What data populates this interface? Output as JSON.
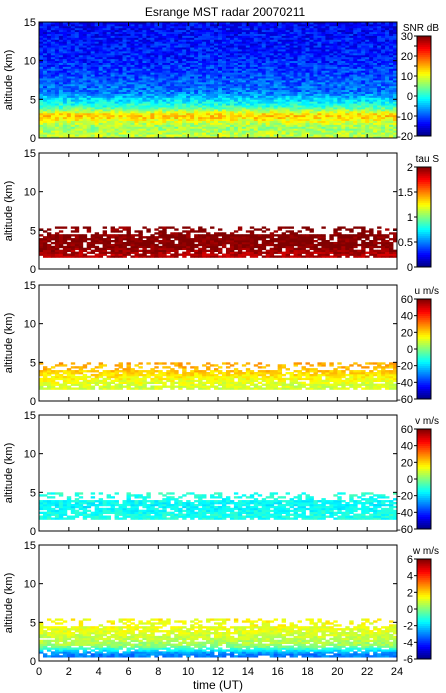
{
  "title": "Esrange MST radar 20070211",
  "chart_data": [
    {
      "type": "heatmap",
      "quantity": "SNR",
      "colorbar_label": "SNR dB",
      "clim": [
        -20,
        30
      ],
      "colorbar_ticks": [
        -20,
        -15,
        -10,
        -5,
        0,
        5,
        10,
        15,
        20,
        25,
        30
      ],
      "colormap": "jet",
      "background": "filled",
      "ylabel": "altitude (km)",
      "ylim": [
        0,
        15
      ],
      "yticks": [
        0,
        5,
        10,
        15
      ],
      "xlim": [
        0,
        24
      ],
      "layer_profile": [
        {
          "altitude_km": 0.5,
          "value": 8
        },
        {
          "altitude_km": 1.5,
          "value": 6
        },
        {
          "altitude_km": 2.5,
          "value": 12
        },
        {
          "altitude_km": 3.0,
          "value": 14
        },
        {
          "altitude_km": 4.0,
          "value": 2
        },
        {
          "altitude_km": 6.0,
          "value": -8
        },
        {
          "altitude_km": 10.0,
          "value": -12
        },
        {
          "altitude_km": 15.0,
          "value": -14
        }
      ]
    },
    {
      "type": "heatmap",
      "quantity": "tau",
      "colorbar_label": "tau S",
      "clim": [
        0,
        2
      ],
      "colorbar_ticks": [
        0,
        0.5,
        1,
        1.5,
        2
      ],
      "colormap": "jet",
      "background": "sparse",
      "ylabel": "altitude (km)",
      "ylim": [
        0,
        15
      ],
      "yticks": [
        0,
        5,
        10,
        15
      ],
      "xlim": [
        0,
        24
      ],
      "layer_profile": [
        {
          "altitude_km": 2.0,
          "value": 1.9
        },
        {
          "altitude_km": 3.0,
          "value": 2.0
        },
        {
          "altitude_km": 4.0,
          "value": 2.0
        },
        {
          "altitude_km": 5.5,
          "value": 2.0
        }
      ]
    },
    {
      "type": "heatmap",
      "quantity": "u",
      "colorbar_label": "u m/s",
      "clim": [
        -60,
        60
      ],
      "colorbar_ticks": [
        -60,
        -40,
        -20,
        0,
        20,
        40,
        60
      ],
      "colormap": "jet",
      "background": "sparse",
      "ylabel": "altitude (km)",
      "ylim": [
        0,
        15
      ],
      "yticks": [
        0,
        5,
        10,
        15
      ],
      "xlim": [
        0,
        24
      ],
      "layer_profile": [
        {
          "altitude_km": 2.0,
          "value": 10
        },
        {
          "altitude_km": 3.0,
          "value": 15
        },
        {
          "altitude_km": 4.0,
          "value": 22
        },
        {
          "altitude_km": 5.0,
          "value": 25
        }
      ]
    },
    {
      "type": "heatmap",
      "quantity": "v",
      "colorbar_label": "v m/s",
      "clim": [
        -60,
        60
      ],
      "colorbar_ticks": [
        -60,
        -40,
        -20,
        0,
        20,
        40,
        60
      ],
      "colormap": "jet",
      "background": "sparse",
      "ylabel": "altitude (km)",
      "ylim": [
        0,
        15
      ],
      "yticks": [
        0,
        5,
        10,
        15
      ],
      "xlim": [
        0,
        24
      ],
      "layer_profile": [
        {
          "altitude_km": 2.0,
          "value": -12
        },
        {
          "altitude_km": 3.0,
          "value": -15
        },
        {
          "altitude_km": 4.0,
          "value": -14
        },
        {
          "altitude_km": 5.0,
          "value": -10
        }
      ]
    },
    {
      "type": "heatmap",
      "quantity": "w",
      "colorbar_label": "w m/s",
      "clim": [
        -6,
        6
      ],
      "colorbar_ticks": [
        -6,
        -4,
        -2,
        0,
        2,
        4,
        6
      ],
      "colormap": "jet",
      "background": "sparse",
      "ylabel": "altitude (km)",
      "ylim": [
        0,
        15
      ],
      "yticks": [
        0,
        5,
        10,
        15
      ],
      "xlim": [
        0,
        24
      ],
      "xticks": [
        0,
        2,
        4,
        6,
        8,
        10,
        12,
        14,
        16,
        18,
        20,
        22,
        24
      ],
      "xlabel": "time (UT)",
      "layer_profile": [
        {
          "altitude_km": 1.0,
          "value": -3
        },
        {
          "altitude_km": 2.0,
          "value": 0.3
        },
        {
          "altitude_km": 3.0,
          "value": 0.8
        },
        {
          "altitude_km": 4.0,
          "value": 1.2
        },
        {
          "altitude_km": 5.5,
          "value": 1.5
        }
      ]
    }
  ]
}
